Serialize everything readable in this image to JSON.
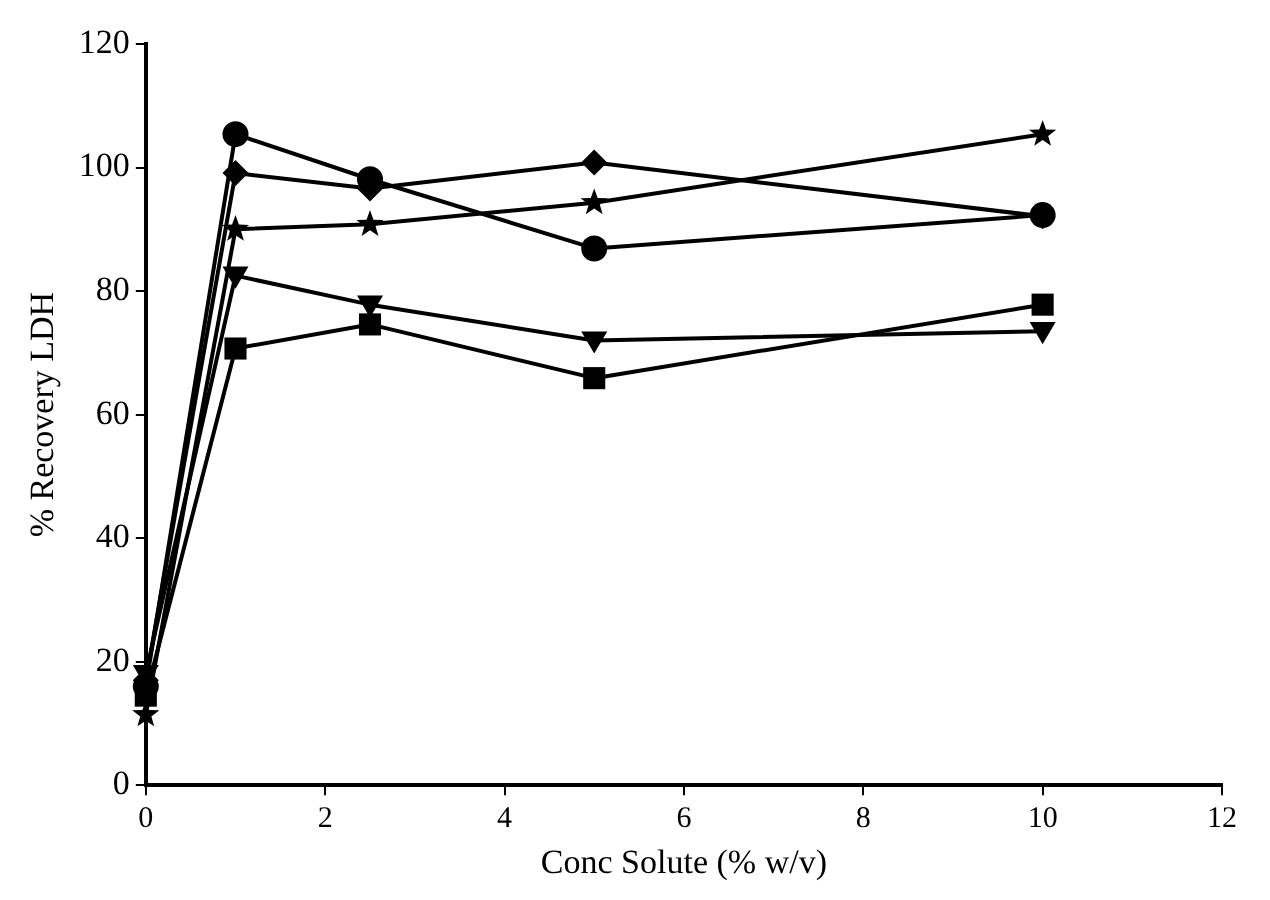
{
  "chart_data": {
    "type": "line",
    "xlabel": "Conc Solute (% w/v)",
    "ylabel": "% Recovery LDH",
    "x": [
      0,
      1,
      2.5,
      5,
      10
    ],
    "xlim": [
      0,
      12
    ],
    "xticks": [
      0,
      2,
      4,
      6,
      8,
      10,
      12
    ],
    "ylim": [
      0,
      120
    ],
    "yticks": [
      0,
      20,
      40,
      60,
      80,
      100,
      120
    ],
    "grid": false,
    "legend": false,
    "line_style": "solid",
    "series": [
      {
        "color": "#000000",
        "marker": "circle",
        "values": [
          16,
          105.4,
          98.1,
          86.9,
          92.3
        ]
      },
      {
        "color": "#000000",
        "marker": "diamond",
        "values": [
          17,
          99.1,
          96.6,
          100.8,
          92.1
        ]
      },
      {
        "color": "#000000",
        "marker": "star",
        "values": [
          11.4,
          90,
          90.8,
          94.3,
          105.4
        ]
      },
      {
        "color": "#000000",
        "marker": "triangle",
        "values": [
          18,
          82.5,
          77.8,
          72,
          73.5
        ]
      },
      {
        "color": "#000000",
        "marker": "square",
        "values": [
          14.5,
          70.7,
          74.6,
          65.9,
          77.8
        ]
      }
    ]
  }
}
